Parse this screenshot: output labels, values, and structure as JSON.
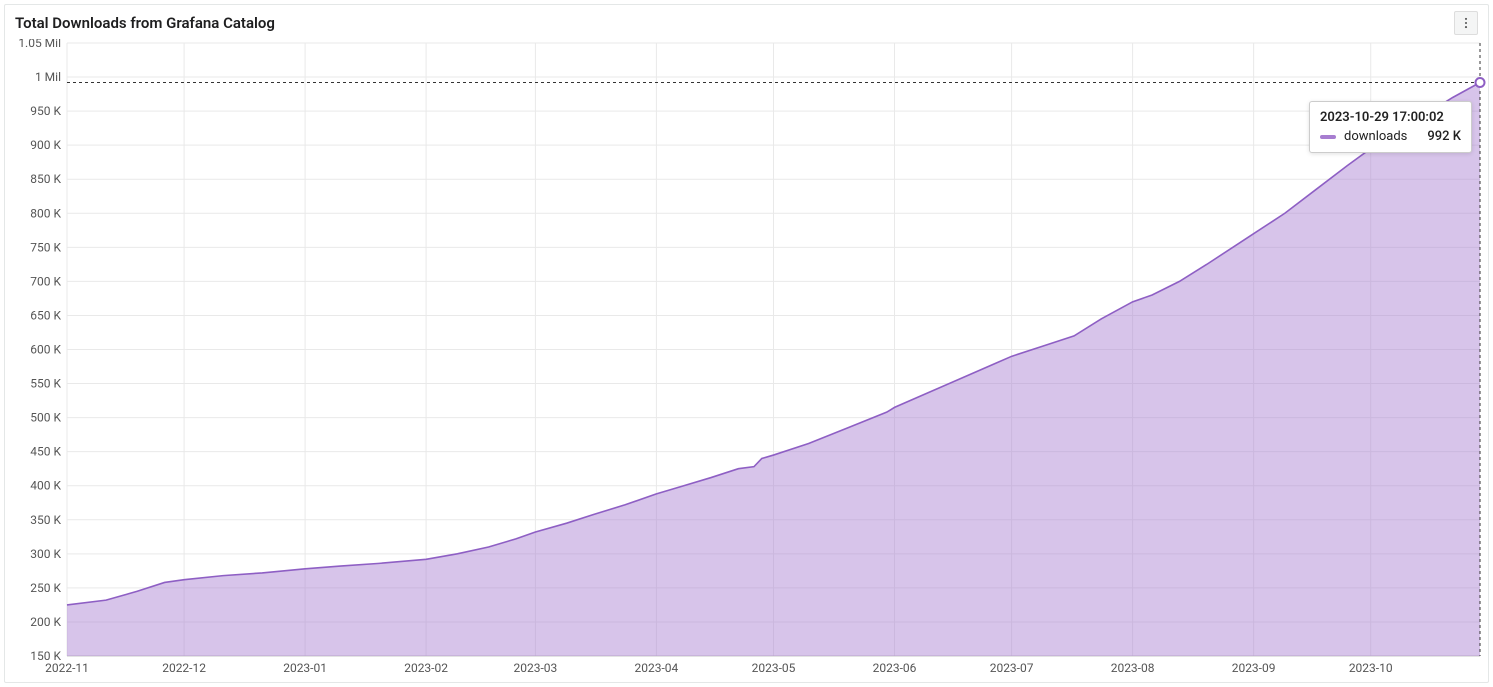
{
  "panel": {
    "title": "Total Downloads from Grafana Catalog",
    "background_color": "#ffffff",
    "border_color": "#e4e7e7"
  },
  "chart": {
    "type": "area",
    "series_color": "#a77dd0",
    "line_color": "#8e5fc4",
    "fill_opacity": 0.45,
    "grid_color": "#e9e9e9",
    "axis_color": "#c7c7c7",
    "label_color": "#555555",
    "label_fontsize": 12,
    "y": {
      "min": 150000,
      "max": 1050000,
      "tick_step": 50000,
      "ticks": [
        {
          "v": 150000,
          "label": "150 K"
        },
        {
          "v": 200000,
          "label": "200 K"
        },
        {
          "v": 250000,
          "label": "250 K"
        },
        {
          "v": 300000,
          "label": "300 K"
        },
        {
          "v": 350000,
          "label": "350 K"
        },
        {
          "v": 400000,
          "label": "400 K"
        },
        {
          "v": 450000,
          "label": "450 K"
        },
        {
          "v": 500000,
          "label": "500 K"
        },
        {
          "v": 550000,
          "label": "550 K"
        },
        {
          "v": 600000,
          "label": "600 K"
        },
        {
          "v": 650000,
          "label": "650 K"
        },
        {
          "v": 700000,
          "label": "700 K"
        },
        {
          "v": 750000,
          "label": "750 K"
        },
        {
          "v": 800000,
          "label": "800 K"
        },
        {
          "v": 850000,
          "label": "850 K"
        },
        {
          "v": 900000,
          "label": "900 K"
        },
        {
          "v": 950000,
          "label": "950 K"
        },
        {
          "v": 1000000,
          "label": "1 Mil"
        },
        {
          "v": 1050000,
          "label": "1.05 Mil"
        }
      ]
    },
    "x": {
      "ticks": [
        {
          "t": 0,
          "label": "2022-11"
        },
        {
          "t": 30,
          "label": "2022-12"
        },
        {
          "t": 61,
          "label": "2023-01"
        },
        {
          "t": 92,
          "label": "2023-02"
        },
        {
          "t": 120,
          "label": "2023-03"
        },
        {
          "t": 151,
          "label": "2023-04"
        },
        {
          "t": 181,
          "label": "2023-05"
        },
        {
          "t": 212,
          "label": "2023-06"
        },
        {
          "t": 242,
          "label": "2023-07"
        },
        {
          "t": 273,
          "label": "2023-08"
        },
        {
          "t": 304,
          "label": "2023-09"
        },
        {
          "t": 334,
          "label": "2023-10"
        }
      ],
      "min": 0,
      "max": 362
    },
    "data": [
      {
        "t": 0,
        "v": 225000
      },
      {
        "t": 10,
        "v": 232000
      },
      {
        "t": 18,
        "v": 245000
      },
      {
        "t": 25,
        "v": 258000
      },
      {
        "t": 30,
        "v": 262000
      },
      {
        "t": 40,
        "v": 268000
      },
      {
        "t": 50,
        "v": 272000
      },
      {
        "t": 61,
        "v": 278000
      },
      {
        "t": 70,
        "v": 282000
      },
      {
        "t": 80,
        "v": 286000
      },
      {
        "t": 92,
        "v": 292000
      },
      {
        "t": 100,
        "v": 300000
      },
      {
        "t": 108,
        "v": 310000
      },
      {
        "t": 115,
        "v": 322000
      },
      {
        "t": 120,
        "v": 332000
      },
      {
        "t": 128,
        "v": 345000
      },
      {
        "t": 135,
        "v": 358000
      },
      {
        "t": 143,
        "v": 372000
      },
      {
        "t": 151,
        "v": 388000
      },
      {
        "t": 158,
        "v": 400000
      },
      {
        "t": 165,
        "v": 412000
      },
      {
        "t": 172,
        "v": 425000
      },
      {
        "t": 176,
        "v": 428000
      },
      {
        "t": 178,
        "v": 440000
      },
      {
        "t": 181,
        "v": 445000
      },
      {
        "t": 190,
        "v": 462000
      },
      {
        "t": 200,
        "v": 485000
      },
      {
        "t": 210,
        "v": 508000
      },
      {
        "t": 212,
        "v": 515000
      },
      {
        "t": 220,
        "v": 535000
      },
      {
        "t": 230,
        "v": 560000
      },
      {
        "t": 238,
        "v": 580000
      },
      {
        "t": 242,
        "v": 590000
      },
      {
        "t": 250,
        "v": 605000
      },
      {
        "t": 258,
        "v": 620000
      },
      {
        "t": 265,
        "v": 645000
      },
      {
        "t": 273,
        "v": 670000
      },
      {
        "t": 278,
        "v": 680000
      },
      {
        "t": 285,
        "v": 700000
      },
      {
        "t": 292,
        "v": 725000
      },
      {
        "t": 300,
        "v": 755000
      },
      {
        "t": 304,
        "v": 770000
      },
      {
        "t": 312,
        "v": 800000
      },
      {
        "t": 320,
        "v": 835000
      },
      {
        "t": 328,
        "v": 870000
      },
      {
        "t": 334,
        "v": 895000
      },
      {
        "t": 340,
        "v": 918000
      },
      {
        "t": 348,
        "v": 945000
      },
      {
        "t": 355,
        "v": 970000
      },
      {
        "t": 362,
        "v": 992000
      }
    ]
  },
  "tooltip": {
    "timestamp": "2023-10-29 17:00:02",
    "series_label": "downloads",
    "value_label": "992 K",
    "swatch_color": "#a77dd0",
    "hover_point": {
      "t": 362,
      "v": 992000
    }
  },
  "menu_icon": "more-vert"
}
